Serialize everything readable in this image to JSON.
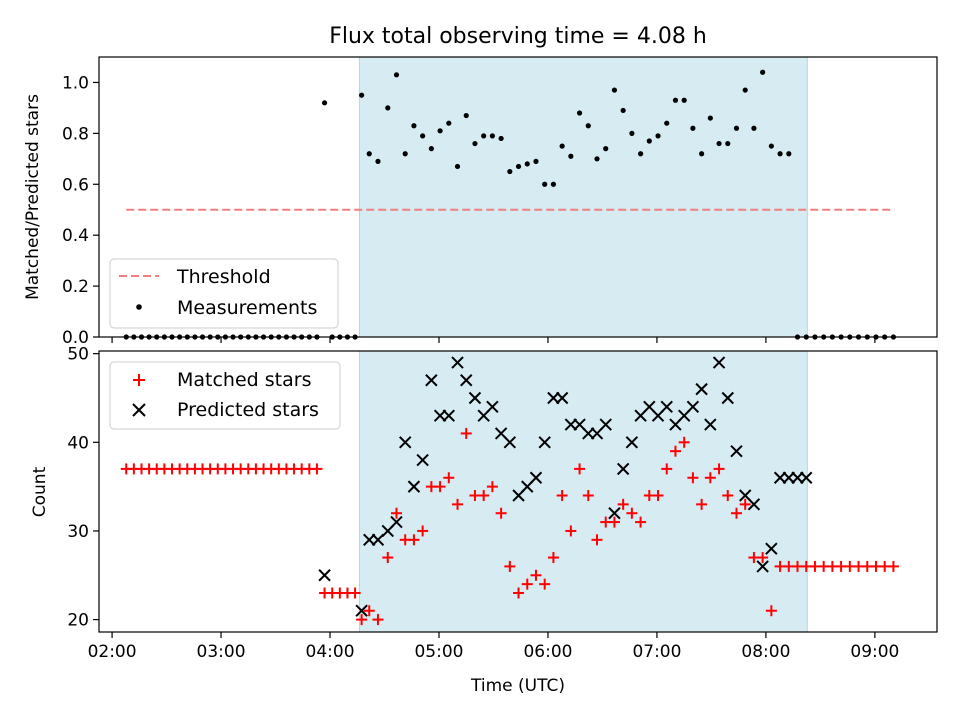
{
  "figure": {
    "title": "Flux total observing time = 4.08 h",
    "xlabel": "Time (UTC)"
  },
  "chart_data": [
    {
      "type": "scatter",
      "title": "Flux total observing time = 4.08 h",
      "ylabel": "Matched/Predicted stars",
      "xlabel": "",
      "xlim": [
        1.88,
        9.57
      ],
      "ylim": [
        0.0,
        1.1
      ],
      "x_ticks": [
        2,
        3,
        4,
        5,
        6,
        7,
        8,
        9
      ],
      "y_ticks": [
        0.0,
        0.2,
        0.4,
        0.6,
        0.8,
        1.0
      ],
      "y_tick_labels": [
        "0.0",
        "0.2",
        "0.4",
        "0.6",
        "0.8",
        "1.0"
      ],
      "shaded_span": [
        4.27,
        8.38
      ],
      "legend_position": "lower-left",
      "series": [
        {
          "name": "Threshold",
          "kind": "dashed-line",
          "color": "#f08080",
          "x": [
            2.13,
            9.18
          ],
          "y": [
            0.5,
            0.5
          ]
        },
        {
          "name": "Measurements",
          "kind": "dots",
          "color": "#000000",
          "x": [
            2.13,
            2.2,
            2.27,
            2.34,
            2.41,
            2.48,
            2.55,
            2.62,
            2.69,
            2.76,
            2.83,
            2.9,
            2.97,
            3.04,
            3.11,
            3.18,
            3.25,
            3.32,
            3.39,
            3.46,
            3.53,
            3.6,
            3.67,
            3.74,
            3.81,
            3.88,
            3.95,
            4.02,
            4.09,
            4.16,
            4.23,
            4.29,
            4.36,
            4.44,
            4.53,
            4.61,
            4.69,
            4.77,
            4.85,
            4.93,
            5.01,
            5.09,
            5.17,
            5.25,
            5.33,
            5.41,
            5.49,
            5.57,
            5.65,
            5.73,
            5.81,
            5.89,
            5.97,
            6.05,
            6.13,
            6.21,
            6.29,
            6.37,
            6.45,
            6.53,
            6.61,
            6.69,
            6.77,
            6.85,
            6.93,
            7.01,
            7.09,
            7.17,
            7.25,
            7.33,
            7.41,
            7.49,
            7.57,
            7.65,
            7.73,
            7.81,
            7.89,
            7.97,
            8.05,
            8.13,
            8.21,
            8.29,
            8.37,
            8.45,
            8.53,
            8.61,
            8.69,
            8.77,
            8.85,
            8.93,
            9.01,
            9.09,
            9.17
          ],
          "y": [
            0,
            0,
            0,
            0,
            0,
            0,
            0,
            0,
            0,
            0,
            0,
            0,
            0,
            0,
            0,
            0,
            0,
            0,
            0,
            0,
            0,
            0,
            0,
            0,
            0,
            0,
            0.92,
            0,
            0,
            0,
            0,
            0.95,
            0.72,
            0.69,
            0.9,
            1.03,
            0.72,
            0.83,
            0.79,
            0.74,
            0.81,
            0.84,
            0.67,
            0.87,
            0.76,
            0.79,
            0.79,
            0.78,
            0.65,
            0.67,
            0.68,
            0.69,
            0.6,
            0.6,
            0.75,
            0.71,
            0.88,
            0.83,
            0.7,
            0.74,
            0.97,
            0.89,
            0.8,
            0.72,
            0.77,
            0.79,
            0.84,
            0.93,
            0.93,
            0.82,
            0.72,
            0.86,
            0.76,
            0.76,
            0.82,
            0.97,
            0.82,
            1.04,
            0.75,
            0.72,
            0.72,
            0,
            0,
            0,
            0,
            0,
            0,
            0,
            0,
            0,
            0,
            0,
            0
          ]
        }
      ]
    },
    {
      "type": "scatter",
      "title": "",
      "ylabel": "Count",
      "xlabel": "Time (UTC)",
      "xlim": [
        1.88,
        9.57
      ],
      "ylim": [
        18.6,
        50.3
      ],
      "x_ticks": [
        2,
        3,
        4,
        5,
        6,
        7,
        8,
        9
      ],
      "x_tick_labels": [
        "02:00",
        "03:00",
        "04:00",
        "05:00",
        "06:00",
        "07:00",
        "08:00",
        "09:00"
      ],
      "y_ticks": [
        20,
        30,
        40,
        50
      ],
      "y_tick_labels": [
        "20",
        "30",
        "40",
        "50"
      ],
      "shaded_span": [
        4.27,
        8.38
      ],
      "legend_position": "upper-left",
      "series": [
        {
          "name": "Matched stars",
          "marker": "plus",
          "color": "#ff0000",
          "x": [
            2.13,
            2.2,
            2.27,
            2.34,
            2.41,
            2.48,
            2.55,
            2.62,
            2.69,
            2.76,
            2.83,
            2.9,
            2.97,
            3.04,
            3.11,
            3.18,
            3.25,
            3.32,
            3.39,
            3.46,
            3.53,
            3.6,
            3.67,
            3.74,
            3.81,
            3.88,
            3.95,
            4.02,
            4.09,
            4.16,
            4.23,
            4.29,
            4.36,
            4.44,
            4.53,
            4.61,
            4.69,
            4.77,
            4.85,
            4.93,
            5.01,
            5.09,
            5.17,
            5.25,
            5.33,
            5.41,
            5.49,
            5.57,
            5.65,
            5.73,
            5.81,
            5.89,
            5.97,
            6.05,
            6.13,
            6.21,
            6.29,
            6.37,
            6.45,
            6.53,
            6.61,
            6.69,
            6.77,
            6.85,
            6.93,
            7.01,
            7.09,
            7.17,
            7.25,
            7.33,
            7.41,
            7.49,
            7.57,
            7.65,
            7.73,
            7.81,
            7.89,
            7.97,
            8.05,
            8.13,
            8.21,
            8.29,
            8.37,
            8.45,
            8.53,
            8.61,
            8.69,
            8.77,
            8.85,
            8.93,
            9.01,
            9.09,
            9.17
          ],
          "y": [
            37,
            37,
            37,
            37,
            37,
            37,
            37,
            37,
            37,
            37,
            37,
            37,
            37,
            37,
            37,
            37,
            37,
            37,
            37,
            37,
            37,
            37,
            37,
            37,
            37,
            37,
            23,
            23,
            23,
            23,
            23,
            20,
            21,
            20,
            27,
            32,
            29,
            29,
            30,
            35,
            35,
            36,
            33,
            41,
            34,
            34,
            35,
            32,
            26,
            23,
            24,
            25,
            24,
            27,
            34,
            30,
            37,
            34,
            29,
            31,
            31,
            33,
            32,
            31,
            34,
            34,
            37,
            39,
            40,
            36,
            33,
            36,
            37,
            34,
            32,
            33,
            27,
            27,
            21,
            26,
            26,
            26,
            26,
            26,
            26,
            26,
            26,
            26,
            26,
            26,
            26,
            26,
            26
          ]
        },
        {
          "name": "Predicted stars",
          "marker": "x",
          "color": "#000000",
          "x": [
            3.95,
            4.29,
            4.36,
            4.44,
            4.53,
            4.61,
            4.69,
            4.77,
            4.85,
            4.93,
            5.01,
            5.09,
            5.17,
            5.25,
            5.33,
            5.41,
            5.49,
            5.57,
            5.65,
            5.73,
            5.81,
            5.89,
            5.97,
            6.05,
            6.13,
            6.21,
            6.29,
            6.37,
            6.45,
            6.53,
            6.61,
            6.69,
            6.77,
            6.85,
            6.93,
            7.01,
            7.09,
            7.17,
            7.25,
            7.33,
            7.41,
            7.49,
            7.57,
            7.65,
            7.73,
            7.81,
            7.89,
            7.97,
            8.05,
            8.13,
            8.21,
            8.29,
            8.37
          ],
          "y": [
            25,
            21,
            29,
            29,
            30,
            31,
            40,
            35,
            38,
            47,
            43,
            43,
            49,
            47,
            45,
            43,
            44,
            41,
            40,
            34,
            35,
            36,
            40,
            45,
            45,
            42,
            42,
            41,
            41,
            42,
            32,
            37,
            40,
            43,
            44,
            43,
            44,
            42,
            43,
            44,
            46,
            42,
            49,
            45,
            39,
            34,
            33,
            26,
            28,
            36,
            36,
            36,
            36
          ]
        }
      ]
    }
  ]
}
